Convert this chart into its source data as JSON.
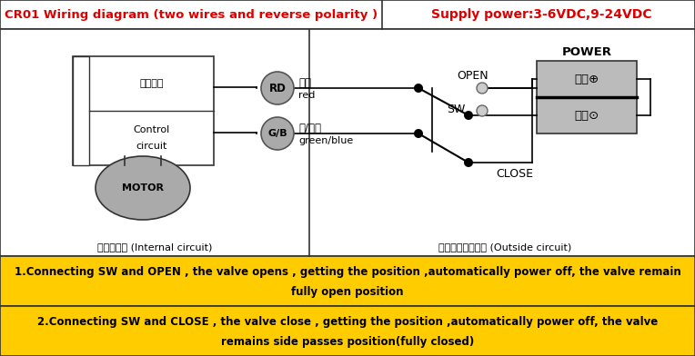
{
  "title_left": "CR01 Wiring diagram (two wires and reverse polarity )",
  "title_right": "Supply power:3-6VDC,9-24VDC",
  "title_text_color": "#dd0000",
  "title_right_color": "#dd0000",
  "note_bg": "#ffcc00",
  "note_text_color": "#000000",
  "internal_label": "执行器内部 (Internal circuit)",
  "external_label": "执行器外部控制器 (Outside circuit)",
  "control_label1": "控制电路",
  "control_label2": "Control",
  "control_label3": "circuit",
  "motor_label": "MOTOR",
  "rd_label": "RD",
  "red_label": "红线",
  "red_sub": "red",
  "gb_label": "G/B",
  "green_label": "绻/蓝线",
  "green_sub": "green/blue",
  "open_label": "OPEN",
  "close_label": "CLOSE",
  "sw_label": "SW",
  "power_label": "POWER",
  "pos_label": "正极⊕",
  "neg_label": "负极⊙",
  "note1_line1": "1.Connecting SW and OPEN , the valve opens , getting the position ,automatically power off, the valve remain",
  "note1_line2": "fully open position",
  "note2_line1": "2.Connecting SW and CLOSE , the valve close , getting the position ,automatically power off, the valve",
  "note2_line2": "remains side passes position(fully closed)"
}
